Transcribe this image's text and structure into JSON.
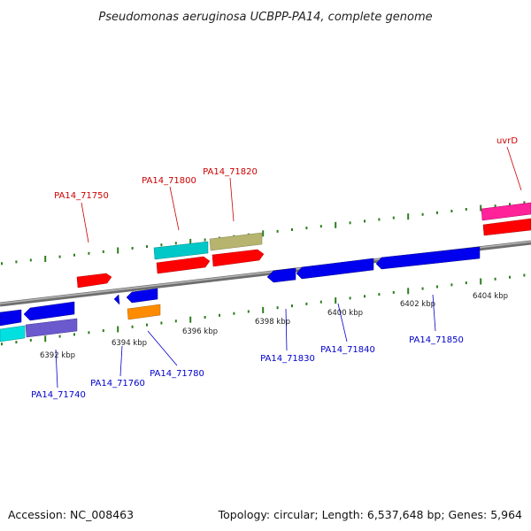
{
  "title": "Pseudomonas aeruginosa UCBPP-PA14, complete genome",
  "footer": {
    "accession": "Accession: NC_008463",
    "summary": "Topology: circular; Length: 6,537,648 bp; Genes: 5,964"
  },
  "colors": {
    "forward_label": "#cc0000",
    "reverse_label": "#0000cc",
    "tick": "#2d7d1e",
    "backbone": "#8a8a8a"
  },
  "kbp_labels": [
    "6392 kbp",
    "6394 kbp",
    "6396 kbp",
    "6398 kbp",
    "6400 kbp",
    "6402 kbp",
    "6404 kbp"
  ],
  "forward_labels": [
    {
      "text": "PA14_71750"
    },
    {
      "text": "PA14_71800"
    },
    {
      "text": "PA14_71820"
    },
    {
      "text": "uvrD"
    }
  ],
  "reverse_labels": [
    {
      "text": "PA14_71740"
    },
    {
      "text": "PA14_71760"
    },
    {
      "text": "PA14_71780"
    },
    {
      "text": "PA14_71830"
    },
    {
      "text": "PA14_71840"
    },
    {
      "text": "PA14_71850"
    }
  ]
}
